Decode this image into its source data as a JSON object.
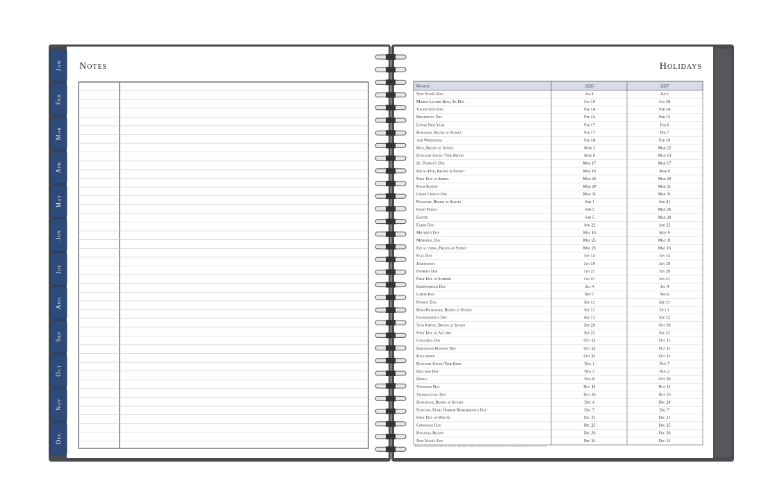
{
  "tabs": [
    "Jan",
    "Feb",
    "Mar",
    "Apr",
    "May",
    "Jun",
    "Jul",
    "Aug",
    "Sep",
    "Oct",
    "Nov",
    "Dec"
  ],
  "notes": {
    "title": "Notes"
  },
  "holidays": {
    "title": "Holidays",
    "header": [
      "Holiday",
      "2026",
      "2027"
    ],
    "rows": [
      [
        "New Year's Day",
        "Jan 1",
        "Jan 1"
      ],
      [
        "Martin Luther King, Jr. Day",
        "Jan 19",
        "Jan 18"
      ],
      [
        "Valentine's Day",
        "Feb 14",
        "Feb 14"
      ],
      [
        "Presidents' Day",
        "Feb 16",
        "Feb 15"
      ],
      [
        "Lunar New Year",
        "Feb 17",
        "Feb 6"
      ],
      [
        "Ramadan, Begins at Sunset",
        "Feb 17",
        "Feb 7"
      ],
      [
        "Ash Wednesday",
        "Feb 18",
        "Feb 10"
      ],
      [
        "Holi, Begins at Sunset",
        "Mar 3",
        "Mar 22"
      ],
      [
        "Daylight Saving Time Begins",
        "Mar 8",
        "Mar 14"
      ],
      [
        "St. Patrick's Day",
        "Mar 17",
        "Mar 17"
      ],
      [
        "Eid al-Fitr, Begins at Sunset",
        "Mar 19",
        "Mar 9"
      ],
      [
        "First Day of Spring",
        "Mar 20",
        "Mar 20"
      ],
      [
        "Palm Sunday",
        "Mar 29",
        "Mar 21"
      ],
      [
        "César Chávez Day",
        "Mar 31",
        "Mar 31"
      ],
      [
        "Passover, Begins at Sunset",
        "Apr 1",
        "Apr 21"
      ],
      [
        "Good Friday",
        "Apr 3",
        "Mar 26"
      ],
      [
        "Easter",
        "Apr 5",
        "Mar 28"
      ],
      [
        "Earth Day",
        "Apr 22",
        "Apr 22"
      ],
      [
        "Mother's Day",
        "May 10",
        "May 9"
      ],
      [
        "Memorial Day",
        "May 25",
        "May 31"
      ],
      [
        "Eid al-Adha, Begins at Sunset",
        "May 26",
        "May 16"
      ],
      [
        "Flag Day",
        "Jun 14",
        "Jun 14"
      ],
      [
        "Juneteenth",
        "Jun 19",
        "Jun 19"
      ],
      [
        "Father's Day",
        "Jun 21",
        "Jun 20"
      ],
      [
        "First Day of Summer",
        "Jun 21",
        "Jun 21"
      ],
      [
        "Independence Day",
        "Jul 4",
        "Jul 4"
      ],
      [
        "Labor Day",
        "Sep 7",
        "Sep 6"
      ],
      [
        "Patriot Day",
        "Sep 11",
        "Sep 11"
      ],
      [
        "Rosh Hashanah, Begins at Sunset",
        "Sep 11",
        "Oct 1"
      ],
      [
        "Grandparents Day",
        "Sep 13",
        "Sep 12"
      ],
      [
        "Yom Kippur, Begins at Sunset",
        "Sep 20",
        "Oct 10"
      ],
      [
        "First Day of Autumn",
        "Sep 22",
        "Sep 22"
      ],
      [
        "Columbus Day",
        "Oct 12",
        "Oct 11"
      ],
      [
        "Indigenous Peoples' Day",
        "Oct 12",
        "Oct 11"
      ],
      [
        "Halloween",
        "Oct 31",
        "Oct 31"
      ],
      [
        "Daylight Saving Time Ends",
        "Nov 1",
        "Nov 7"
      ],
      [
        "Election Day",
        "Nov 3",
        "Nov 2"
      ],
      [
        "Diwali",
        "Nov 8",
        "Oct 29"
      ],
      [
        "Veterans Day",
        "Nov 11",
        "Nov 11"
      ],
      [
        "Thanksgiving Day",
        "Nov 26",
        "Nov 25"
      ],
      [
        "Hanukkah, Begins at Sunset",
        "Dec 4",
        "Dec 24"
      ],
      [
        "National Pearl Harbor Remembrance Day",
        "Dec 7",
        "Dec 7"
      ],
      [
        "First Day of Winter",
        "Dec 21",
        "Dec 21"
      ],
      [
        "Christmas Day",
        "Dec 25",
        "Dec 25"
      ],
      [
        "Kwanzaa Begins",
        "Dec 26",
        "Dec 26"
      ],
      [
        "New Year's Eve",
        "Dec 31",
        "Dec 31"
      ]
    ],
    "footnote": "Holidays are represented in the Pacific time zone.  •  Depending on where the moon phase is observed, the dates of certain religious holidays may vary by one day."
  }
}
